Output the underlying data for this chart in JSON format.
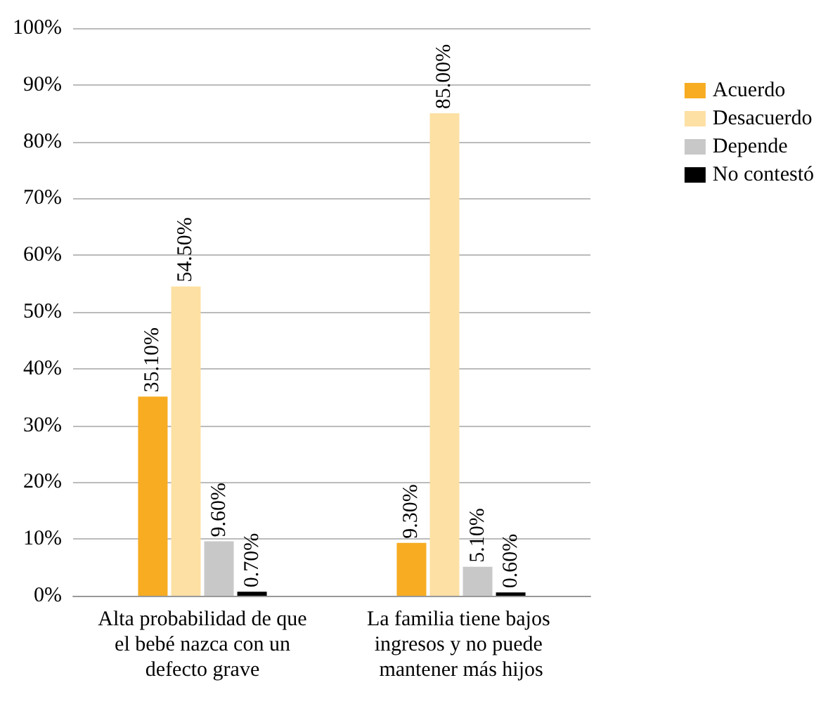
{
  "chart_data": {
    "type": "bar",
    "categories": [
      "Alta probabilidad de que el bebé nazca con un defecto grave",
      "La familia tiene bajos ingresos y no puede mantener más hijos"
    ],
    "series": [
      {
        "name": "Acuerdo",
        "color": "#f7ac22",
        "values": [
          35.1,
          9.3
        ],
        "value_labels": [
          "35.10%",
          "9.30%"
        ]
      },
      {
        "name": "Desacuerdo",
        "color": "#fde0a3",
        "values": [
          54.5,
          85.0
        ],
        "value_labels": [
          "54.50%",
          "85.00%"
        ]
      },
      {
        "name": "Depende",
        "color": "#c8c8c8",
        "values": [
          9.6,
          5.1
        ],
        "value_labels": [
          "9.60%",
          "5.10%"
        ]
      },
      {
        "name": "No contestó",
        "color": "#000000",
        "values": [
          0.7,
          0.6
        ],
        "value_labels": [
          "0.70%",
          "0.60%"
        ]
      }
    ],
    "ylim": [
      0,
      100
    ],
    "yticks": [
      {
        "value": 0,
        "label": "0%"
      },
      {
        "value": 10,
        "label": "10%"
      },
      {
        "value": 20,
        "label": "20%"
      },
      {
        "value": 30,
        "label": "30%"
      },
      {
        "value": 40,
        "label": "40%"
      },
      {
        "value": 50,
        "label": "50%"
      },
      {
        "value": 60,
        "label": "60%"
      },
      {
        "value": 70,
        "label": "70%"
      },
      {
        "value": 80,
        "label": "80%"
      },
      {
        "value": 90,
        "label": "90%"
      },
      {
        "value": 100,
        "label": "100%"
      }
    ],
    "grid": "y",
    "legend": "right"
  }
}
